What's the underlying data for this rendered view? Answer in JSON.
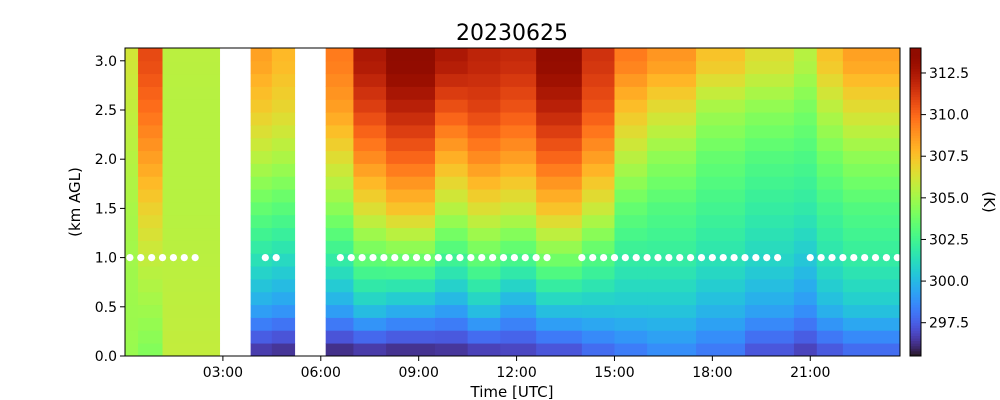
{
  "chart_data": {
    "type": "heatmap",
    "title": "20230625",
    "xlabel": "Time [UTC]",
    "ylabel": "(km AGL)",
    "colorbar_label": "(K)",
    "colormap": "turbo",
    "x_range_hours": [
      0.0,
      23.75
    ],
    "ylim": [
      0.0,
      3.13
    ],
    "clim": [
      295.5,
      314.0
    ],
    "x_tick_hours": [
      3,
      6,
      9,
      12,
      15,
      18,
      21
    ],
    "x_tick_labels": [
      "03:00",
      "06:00",
      "09:00",
      "12:00",
      "15:00",
      "18:00",
      "21:00"
    ],
    "y_ticks": [
      0.0,
      0.5,
      1.0,
      1.5,
      2.0,
      2.5,
      3.0
    ],
    "y_tick_labels": [
      "0.0",
      "0.5",
      "1.0",
      "1.5",
      "2.0",
      "2.5",
      "3.0"
    ],
    "colorbar_ticks": [
      297.5,
      300.0,
      302.5,
      305.0,
      307.5,
      310.0,
      312.5
    ],
    "colorbar_tick_labels": [
      "297.5",
      "300.0",
      "302.5",
      "305.0",
      "307.5",
      "310.0",
      "312.5"
    ],
    "height_levels_km": [
      0.0,
      0.5,
      1.0,
      1.5,
      2.0,
      2.5,
      3.0
    ],
    "columns": [
      {
        "t0": 0.0,
        "t1": 0.4,
        "temps": [
          304.8,
          304.9,
          305.0,
          305.2,
          305.5,
          305.8,
          306.2
        ]
      },
      {
        "t0": 0.4,
        "t1": 1.15,
        "temps": [
          304.2,
          305.0,
          305.8,
          307.0,
          308.5,
          309.8,
          310.8
        ]
      },
      {
        "t0": 1.15,
        "t1": 2.9,
        "temps": [
          305.8,
          305.7,
          305.6,
          305.5,
          305.5,
          305.5,
          305.6
        ]
      },
      {
        "t0": 2.9,
        "t1": 3.85,
        "temps": null
      },
      {
        "t0": 3.85,
        "t1": 4.5,
        "temps": [
          296.2,
          299.5,
          301.5,
          303.5,
          305.5,
          307.2,
          308.5
        ]
      },
      {
        "t0": 4.5,
        "t1": 5.2,
        "temps": [
          296.0,
          299.2,
          301.2,
          303.2,
          305.2,
          306.8,
          307.8
        ]
      },
      {
        "t0": 5.2,
        "t1": 6.15,
        "temps": null
      },
      {
        "t0": 6.15,
        "t1": 7.0,
        "temps": [
          295.8,
          299.5,
          302.0,
          304.5,
          306.5,
          308.5,
          309.5
        ]
      },
      {
        "t0": 7.0,
        "t1": 8.0,
        "temps": [
          296.0,
          300.5,
          303.5,
          306.5,
          309.0,
          311.0,
          312.5
        ]
      },
      {
        "t0": 8.0,
        "t1": 9.5,
        "temps": [
          295.8,
          300.0,
          303.8,
          307.5,
          310.0,
          312.0,
          313.8
        ]
      },
      {
        "t0": 9.5,
        "t1": 10.5,
        "temps": [
          296.0,
          299.5,
          302.5,
          305.5,
          308.0,
          310.5,
          312.5
        ]
      },
      {
        "t0": 10.5,
        "t1": 11.5,
        "temps": [
          296.2,
          300.5,
          303.5,
          306.5,
          309.0,
          311.0,
          312.0
        ]
      },
      {
        "t0": 11.5,
        "t1": 12.6,
        "temps": [
          296.5,
          299.5,
          302.8,
          306.0,
          308.5,
          310.5,
          311.8
        ]
      },
      {
        "t0": 12.6,
        "t1": 14.0,
        "temps": [
          296.8,
          300.5,
          304.0,
          307.5,
          310.0,
          312.0,
          313.5
        ]
      },
      {
        "t0": 14.0,
        "t1": 15.0,
        "temps": [
          297.5,
          300.5,
          303.0,
          306.0,
          308.5,
          310.5,
          311.5
        ]
      },
      {
        "t0": 15.0,
        "t1": 16.0,
        "temps": [
          298.0,
          300.5,
          302.0,
          303.5,
          305.5,
          307.5,
          309.5
        ]
      },
      {
        "t0": 16.0,
        "t1": 17.5,
        "temps": [
          298.5,
          300.5,
          302.0,
          303.0,
          304.5,
          306.5,
          308.8
        ]
      },
      {
        "t0": 17.5,
        "t1": 19.0,
        "temps": [
          298.0,
          300.0,
          301.5,
          302.5,
          303.5,
          305.0,
          307.5
        ]
      },
      {
        "t0": 19.0,
        "t1": 20.5,
        "temps": [
          297.0,
          299.5,
          301.0,
          302.0,
          303.0,
          304.5,
          306.5
        ]
      },
      {
        "t0": 20.5,
        "t1": 21.2,
        "temps": [
          296.5,
          299.0,
          300.5,
          301.8,
          302.8,
          304.0,
          305.5
        ]
      },
      {
        "t0": 21.2,
        "t1": 22.0,
        "temps": [
          297.0,
          300.0,
          301.5,
          302.5,
          303.8,
          305.5,
          307.5
        ]
      },
      {
        "t0": 22.0,
        "t1": 23.75,
        "temps": [
          297.5,
          300.5,
          302.0,
          303.0,
          304.5,
          306.5,
          308.5
        ]
      }
    ],
    "marker_series": {
      "height_km": 1.0,
      "color": "#ffffff",
      "time_ranges_hours": [
        [
          0.15,
          2.4
        ],
        [
          4.3,
          4.75
        ],
        [
          6.6,
          13.2
        ],
        [
          14.0,
          20.3
        ],
        [
          21.0,
          23.7
        ]
      ],
      "spacing_hours": 0.3333
    }
  }
}
